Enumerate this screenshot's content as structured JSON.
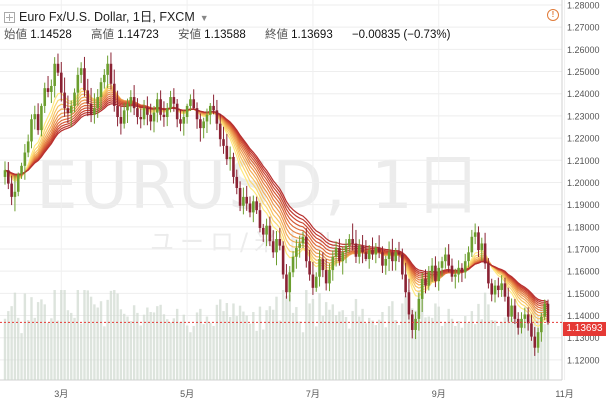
{
  "header": {
    "symbol": "Euro Fx/U.S. Dollar, 1日, FXCM",
    "open_label": "始値",
    "open_value": "1.14528",
    "high_label": "高値",
    "high_value": "1.14723",
    "low_label": "安値",
    "low_value": "1.13588",
    "close_label": "終値",
    "close_value": "1.13693",
    "change": "−0.00835 (−0.73%)"
  },
  "icons": {
    "expand": "plus-square-icon",
    "dropdown": "chevron-down-icon",
    "alert": "warning-icon"
  },
  "watermark": {
    "line1": "EURUSD, 1日",
    "line2": "ユーロ/米ドル"
  },
  "current_price_label": "1.13693",
  "colors": {
    "up": "#6b9e2e",
    "down": "#8a2233",
    "price_line": "#e53935",
    "volume": "#cfd8cf",
    "ma_colors": [
      "#ffe97f",
      "#fbd670",
      "#f7c264",
      "#f2ad58",
      "#ec984e",
      "#e58244",
      "#dd6c3c",
      "#d45836",
      "#cb4632",
      "#c13930",
      "#b7302f"
    ]
  },
  "chart_data": {
    "type": "candlestick",
    "ylim": [
      1.115,
      1.28
    ],
    "y_ticks": [
      "1.28000",
      "1.27000",
      "1.26000",
      "1.25000",
      "1.24000",
      "1.23000",
      "1.22000",
      "1.21000",
      "1.20000",
      "1.19000",
      "1.18000",
      "1.17000",
      "1.16000",
      "1.15000",
      "1.14000",
      "1.13000",
      "1.12000"
    ],
    "x_ticks": [
      "3月",
      "5月",
      "7月",
      "9月",
      "11月"
    ],
    "ohlc": [
      [
        1.2025,
        1.2095,
        1.199,
        1.2055
      ],
      [
        1.2055,
        1.2092,
        1.197,
        1.1995
      ],
      [
        1.1995,
        1.2031,
        1.1898,
        1.1935
      ],
      [
        1.1935,
        1.2033,
        1.187,
        1.1958
      ],
      [
        1.1958,
        1.2045,
        1.1938,
        1.2037
      ],
      [
        1.2037,
        1.2089,
        1.2016,
        1.2075
      ],
      [
        1.2075,
        1.2173,
        1.2012,
        1.2135
      ],
      [
        1.2135,
        1.2216,
        1.2114,
        1.2185
      ],
      [
        1.2185,
        1.2307,
        1.2154,
        1.2285
      ],
      [
        1.2285,
        1.2346,
        1.2239,
        1.2308
      ],
      [
        1.2308,
        1.2357,
        1.2215,
        1.2236
      ],
      [
        1.2236,
        1.2356,
        1.2208,
        1.2345
      ],
      [
        1.2345,
        1.245,
        1.2313,
        1.2425
      ],
      [
        1.2425,
        1.248,
        1.2384,
        1.2408
      ],
      [
        1.2408,
        1.2464,
        1.2358,
        1.2435
      ],
      [
        1.2435,
        1.2565,
        1.2383,
        1.2535
      ],
      [
        1.2535,
        1.2581,
        1.248,
        1.2495
      ],
      [
        1.2495,
        1.2543,
        1.2365,
        1.2405
      ],
      [
        1.2405,
        1.2473,
        1.2296,
        1.2335
      ],
      [
        1.2335,
        1.2392,
        1.2268,
        1.2312
      ],
      [
        1.2312,
        1.237,
        1.2252,
        1.2345
      ],
      [
        1.2345,
        1.2424,
        1.2317,
        1.2405
      ],
      [
        1.2405,
        1.2518,
        1.2346,
        1.2485
      ],
      [
        1.2485,
        1.2542,
        1.2448,
        1.2515
      ],
      [
        1.2515,
        1.2566,
        1.2388,
        1.2415
      ],
      [
        1.2415,
        1.2467,
        1.2299,
        1.2355
      ],
      [
        1.2355,
        1.2426,
        1.2272,
        1.2305
      ],
      [
        1.2305,
        1.2402,
        1.2265,
        1.2335
      ],
      [
        1.2335,
        1.2421,
        1.2291,
        1.2385
      ],
      [
        1.2385,
        1.2472,
        1.2328,
        1.2452
      ],
      [
        1.2452,
        1.2511,
        1.2423,
        1.2485
      ],
      [
        1.2485,
        1.2572,
        1.2425,
        1.2535
      ],
      [
        1.2535,
        1.2586,
        1.2419,
        1.2445
      ],
      [
        1.2445,
        1.2509,
        1.2319,
        1.2345
      ],
      [
        1.2345,
        1.2414,
        1.2253,
        1.2295
      ],
      [
        1.2295,
        1.2342,
        1.2216,
        1.2265
      ],
      [
        1.2265,
        1.2359,
        1.2243,
        1.2325
      ],
      [
        1.2325,
        1.2378,
        1.2268,
        1.2355
      ],
      [
        1.2355,
        1.2416,
        1.2316,
        1.2385
      ],
      [
        1.2385,
        1.2439,
        1.2304,
        1.2335
      ],
      [
        1.2335,
        1.238,
        1.2262,
        1.2295
      ],
      [
        1.2295,
        1.2334,
        1.2244,
        1.2285
      ],
      [
        1.2285,
        1.2372,
        1.2258,
        1.2335
      ],
      [
        1.2335,
        1.2388,
        1.2258,
        1.2305
      ],
      [
        1.2305,
        1.2355,
        1.2235,
        1.2275
      ],
      [
        1.2275,
        1.2345,
        1.2226,
        1.2315
      ],
      [
        1.2315,
        1.2404,
        1.2271,
        1.2375
      ],
      [
        1.2375,
        1.2415,
        1.2279,
        1.2305
      ],
      [
        1.2305,
        1.2366,
        1.2251,
        1.2295
      ],
      [
        1.2295,
        1.2358,
        1.2254,
        1.2335
      ],
      [
        1.2335,
        1.2413,
        1.2316,
        1.2385
      ],
      [
        1.2385,
        1.2425,
        1.2319,
        1.2355
      ],
      [
        1.2355,
        1.2376,
        1.2249,
        1.2285
      ],
      [
        1.2285,
        1.2329,
        1.2231,
        1.2265
      ],
      [
        1.2265,
        1.2325,
        1.2211,
        1.2295
      ],
      [
        1.2295,
        1.2355,
        1.2265,
        1.2345
      ],
      [
        1.2345,
        1.2397,
        1.2322,
        1.2375
      ],
      [
        1.2375,
        1.242,
        1.2331,
        1.2335
      ],
      [
        1.2335,
        1.2361,
        1.2242,
        1.2285
      ],
      [
        1.2285,
        1.2311,
        1.2184,
        1.2245
      ],
      [
        1.2245,
        1.2292,
        1.2199,
        1.2275
      ],
      [
        1.2275,
        1.2333,
        1.2223,
        1.2305
      ],
      [
        1.2305,
        1.2358,
        1.2262,
        1.2345
      ],
      [
        1.2345,
        1.2396,
        1.2307,
        1.2325
      ],
      [
        1.2325,
        1.2372,
        1.2236,
        1.2265
      ],
      [
        1.2265,
        1.231,
        1.2162,
        1.2195
      ],
      [
        1.2195,
        1.2251,
        1.2129,
        1.2165
      ],
      [
        1.2165,
        1.2219,
        1.2079,
        1.2105
      ],
      [
        1.2105,
        1.2162,
        1.2053,
        1.2115
      ],
      [
        1.2115,
        1.2134,
        1.1995,
        1.2025
      ],
      [
        1.2025,
        1.2058,
        1.1947,
        1.1975
      ],
      [
        1.1975,
        1.2005,
        1.1871,
        1.1895
      ],
      [
        1.1895,
        1.1977,
        1.1856,
        1.1935
      ],
      [
        1.1935,
        1.1984,
        1.1872,
        1.1905
      ],
      [
        1.1905,
        1.1937,
        1.1843,
        1.1865
      ],
      [
        1.1865,
        1.1941,
        1.1821,
        1.1915
      ],
      [
        1.1915,
        1.1936,
        1.1858,
        1.1875
      ],
      [
        1.1875,
        1.1907,
        1.1775,
        1.1795
      ],
      [
        1.1795,
        1.1813,
        1.1732,
        1.1765
      ],
      [
        1.1765,
        1.1837,
        1.1713,
        1.1805
      ],
      [
        1.1805,
        1.1846,
        1.1713,
        1.1735
      ],
      [
        1.1735,
        1.1785,
        1.166,
        1.1685
      ],
      [
        1.1685,
        1.1781,
        1.1627,
        1.1745
      ],
      [
        1.1745,
        1.1795,
        1.1694,
        1.1715
      ],
      [
        1.1715,
        1.1735,
        1.1566,
        1.1585
      ],
      [
        1.1585,
        1.1632,
        1.1476,
        1.1505
      ],
      [
        1.1505,
        1.1623,
        1.1464,
        1.1595
      ],
      [
        1.1595,
        1.1691,
        1.1573,
        1.1665
      ],
      [
        1.1665,
        1.1742,
        1.1611,
        1.1705
      ],
      [
        1.1705,
        1.176,
        1.1661,
        1.1725
      ],
      [
        1.1725,
        1.1779,
        1.1704,
        1.1755
      ],
      [
        1.1755,
        1.1794,
        1.1616,
        1.1645
      ],
      [
        1.1645,
        1.1696,
        1.1557,
        1.1585
      ],
      [
        1.1585,
        1.1642,
        1.1493,
        1.1525
      ],
      [
        1.1525,
        1.1595,
        1.1507,
        1.1575
      ],
      [
        1.1575,
        1.1693,
        1.1531,
        1.1655
      ],
      [
        1.1655,
        1.1685,
        1.1573,
        1.1605
      ],
      [
        1.1605,
        1.1655,
        1.1513,
        1.1545
      ],
      [
        1.1545,
        1.1635,
        1.151,
        1.1605
      ],
      [
        1.1605,
        1.1694,
        1.1557,
        1.1665
      ],
      [
        1.1665,
        1.1734,
        1.1621,
        1.1705
      ],
      [
        1.1705,
        1.1746,
        1.1625,
        1.1645
      ],
      [
        1.1645,
        1.1709,
        1.1585,
        1.1685
      ],
      [
        1.1685,
        1.1745,
        1.1636,
        1.1715
      ],
      [
        1.1715,
        1.1767,
        1.1684,
        1.1745
      ],
      [
        1.1745,
        1.1815,
        1.1693,
        1.1725
      ],
      [
        1.1725,
        1.1786,
        1.1637,
        1.1665
      ],
      [
        1.1665,
        1.1744,
        1.1634,
        1.1715
      ],
      [
        1.1715,
        1.1763,
        1.1636,
        1.1685
      ],
      [
        1.1685,
        1.174,
        1.1645,
        1.1655
      ],
      [
        1.1655,
        1.1718,
        1.1611,
        1.1695
      ],
      [
        1.1695,
        1.1752,
        1.1651,
        1.1675
      ],
      [
        1.1675,
        1.1727,
        1.1636,
        1.1705
      ],
      [
        1.1705,
        1.1762,
        1.1659,
        1.1685
      ],
      [
        1.1685,
        1.1712,
        1.1592,
        1.1625
      ],
      [
        1.1625,
        1.167,
        1.1584,
        1.1655
      ],
      [
        1.1655,
        1.1734,
        1.1601,
        1.1685
      ],
      [
        1.1685,
        1.1746,
        1.1602,
        1.1645
      ],
      [
        1.1645,
        1.1705,
        1.1603,
        1.1685
      ],
      [
        1.1685,
        1.1732,
        1.1641,
        1.1675
      ],
      [
        1.1675,
        1.1702,
        1.1563,
        1.1585
      ],
      [
        1.1585,
        1.1638,
        1.1482,
        1.1505
      ],
      [
        1.1505,
        1.1566,
        1.1382,
        1.1405
      ],
      [
        1.1405,
        1.1425,
        1.1297,
        1.1335
      ],
      [
        1.1335,
        1.1417,
        1.1294,
        1.1385
      ],
      [
        1.1385,
        1.1502,
        1.1332,
        1.1475
      ],
      [
        1.1475,
        1.1592,
        1.1416,
        1.1565
      ],
      [
        1.1565,
        1.1608,
        1.15,
        1.1535
      ],
      [
        1.1535,
        1.1623,
        1.1513,
        1.1595
      ],
      [
        1.1595,
        1.1659,
        1.1552,
        1.1625
      ],
      [
        1.1625,
        1.1667,
        1.1528,
        1.1555
      ],
      [
        1.1555,
        1.1644,
        1.1512,
        1.1615
      ],
      [
        1.1615,
        1.1665,
        1.1576,
        1.1645
      ],
      [
        1.1645,
        1.1707,
        1.1611,
        1.1675
      ],
      [
        1.1675,
        1.1722,
        1.1595,
        1.1625
      ],
      [
        1.1625,
        1.1657,
        1.1552,
        1.1575
      ],
      [
        1.1575,
        1.1611,
        1.1522,
        1.1585
      ],
      [
        1.1585,
        1.1649,
        1.1549,
        1.1615
      ],
      [
        1.1615,
        1.1636,
        1.1551,
        1.1595
      ],
      [
        1.1595,
        1.1678,
        1.1567,
        1.1645
      ],
      [
        1.1645,
        1.1712,
        1.1617,
        1.1685
      ],
      [
        1.1685,
        1.1786,
        1.1664,
        1.1755
      ],
      [
        1.1755,
        1.1815,
        1.1722,
        1.1775
      ],
      [
        1.1775,
        1.1802,
        1.1664,
        1.1695
      ],
      [
        1.1695,
        1.1751,
        1.1647,
        1.1725
      ],
      [
        1.1725,
        1.1773,
        1.161,
        1.1635
      ],
      [
        1.1635,
        1.1659,
        1.1522,
        1.1545
      ],
      [
        1.1545,
        1.1566,
        1.1464,
        1.1495
      ],
      [
        1.1495,
        1.156,
        1.1459,
        1.1535
      ],
      [
        1.1535,
        1.1571,
        1.1482,
        1.1515
      ],
      [
        1.1515,
        1.1582,
        1.1484,
        1.1545
      ],
      [
        1.1545,
        1.1571,
        1.1463,
        1.1485
      ],
      [
        1.1485,
        1.1526,
        1.1372,
        1.1395
      ],
      [
        1.1395,
        1.1477,
        1.1371,
        1.1445
      ],
      [
        1.1445,
        1.1475,
        1.1362,
        1.1385
      ],
      [
        1.1385,
        1.1415,
        1.1314,
        1.1345
      ],
      [
        1.1345,
        1.1415,
        1.1319,
        1.1385
      ],
      [
        1.1385,
        1.1436,
        1.1343,
        1.1405
      ],
      [
        1.1405,
        1.1437,
        1.1332,
        1.1365
      ],
      [
        1.1365,
        1.1404,
        1.1286,
        1.1305
      ],
      [
        1.1305,
        1.1348,
        1.1218,
        1.1255
      ],
      [
        1.1255,
        1.1345,
        1.1232,
        1.1325
      ],
      [
        1.1325,
        1.1412,
        1.1282,
        1.1395
      ],
      [
        1.1395,
        1.1472,
        1.1379,
        1.1453
      ],
      [
        1.1453,
        1.1472,
        1.1359,
        1.1369
      ]
    ],
    "current_price": 1.13693
  }
}
